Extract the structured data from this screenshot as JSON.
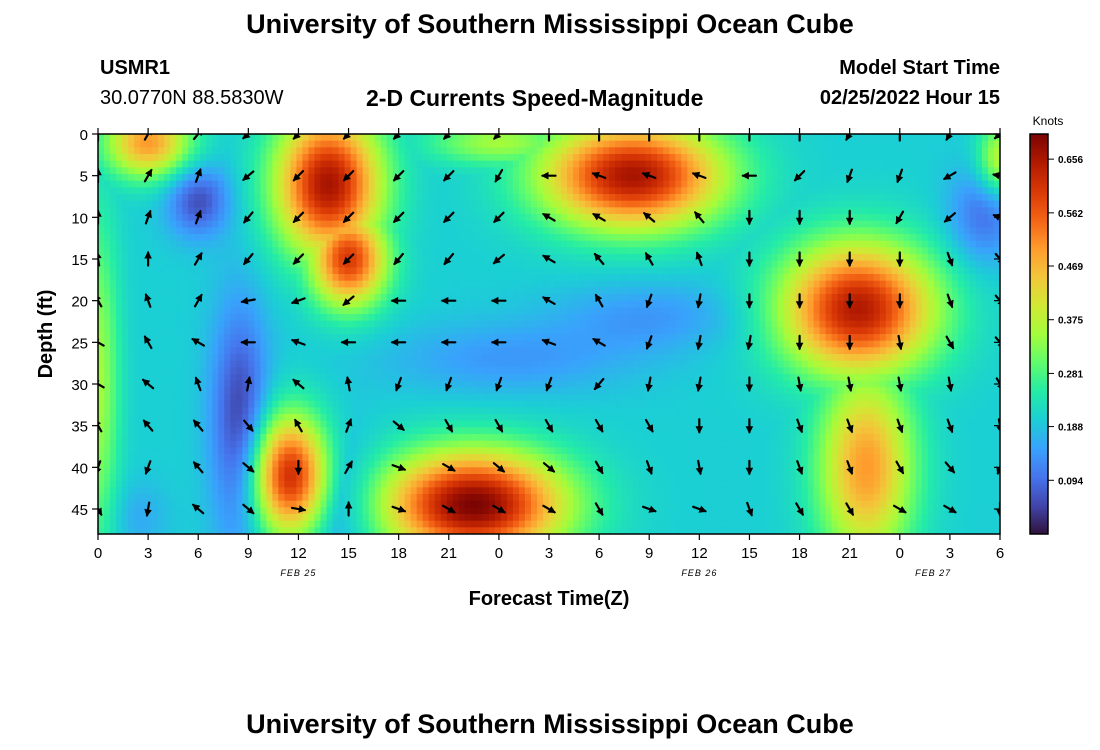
{
  "page": {
    "title": "University of Southern Mississippi Ocean Cube",
    "station": "USMR1",
    "coords": "30.0770N  88.5830W",
    "subtitle": "2-D Currents Speed-Magnitude",
    "model_label": "Model Start Time",
    "model_time": "02/25/2022 Hour 15",
    "footer_title": "University of Southern Mississippi Ocean Cube"
  },
  "chart_data": {
    "type": "heatmap",
    "ylabel": "Depth (ft)",
    "xlabel": "Forecast Time(Z)",
    "x_tick_labels": [
      "0",
      "3",
      "6",
      "9",
      "12",
      "15",
      "18",
      "21",
      "0",
      "3",
      "6",
      "9",
      "12",
      "15",
      "18",
      "21",
      "0",
      "3",
      "6"
    ],
    "x_range_hours": [
      0,
      54
    ],
    "y_ticks": [
      0,
      5,
      10,
      15,
      20,
      25,
      30,
      35,
      40,
      45
    ],
    "ylim": [
      0,
      48
    ],
    "y_inverted": true,
    "date_labels": [
      {
        "label": "FEB 25",
        "hour": 12
      },
      {
        "label": "FEB 26",
        "hour": 36
      },
      {
        "label": "FEB 27",
        "hour": 50
      }
    ],
    "colorbar": {
      "label": "Knots",
      "ticks": [
        0.094,
        0.188,
        0.281,
        0.375,
        0.469,
        0.562,
        0.656
      ],
      "range": [
        0,
        0.7
      ],
      "colors": [
        "#30123b",
        "#4145ab",
        "#4675ed",
        "#39a2fc",
        "#1bcfd4",
        "#24eca6",
        "#61fc6c",
        "#a4fc3b",
        "#d1e834",
        "#f3c63a",
        "#fe9b2d",
        "#f36315",
        "#d93806",
        "#b11901",
        "#7a0403"
      ]
    },
    "speed_hotspots": [
      {
        "t": 3,
        "d": 1,
        "v": 0.5,
        "st": 1.8,
        "sd": 3
      },
      {
        "t": 13.8,
        "d": 6,
        "v": 0.66,
        "st": 2.2,
        "sd": 6
      },
      {
        "t": 15,
        "d": 15,
        "v": 0.6,
        "st": 1.6,
        "sd": 4
      },
      {
        "t": 32,
        "d": 5,
        "v": 0.66,
        "st": 3.8,
        "sd": 4.5
      },
      {
        "t": 24,
        "d": 1,
        "v": 0.35,
        "st": 3,
        "sd": 2
      },
      {
        "t": 45.5,
        "d": 21,
        "v": 0.65,
        "st": 3.2,
        "sd": 5.5
      },
      {
        "t": 46,
        "d": 40,
        "v": 0.5,
        "st": 2,
        "sd": 8
      },
      {
        "t": 11.5,
        "d": 41,
        "v": 0.62,
        "st": 1.6,
        "sd": 5
      },
      {
        "t": 22.5,
        "d": 44.5,
        "v": 0.7,
        "st": 3.8,
        "sd": 4.5
      },
      {
        "t": 0,
        "d": 30,
        "v": 0.35,
        "st": 0.9,
        "sd": 14
      },
      {
        "t": 54,
        "d": 3,
        "v": 0.38,
        "st": 0.9,
        "sd": 3
      },
      {
        "t": 39.5,
        "d": 24,
        "v": 0.22,
        "st": 2.5,
        "sd": 3
      }
    ],
    "speed_lows": [
      {
        "t": 6,
        "d": 21,
        "v": 0.24,
        "st": 1.5,
        "sd": 6
      },
      {
        "t": 6,
        "d": 8,
        "v": 0.1,
        "st": 1.3,
        "sd": 3
      },
      {
        "t": 24.5,
        "d": 27,
        "v": 0.18,
        "st": 5,
        "sd": 3
      },
      {
        "t": 33,
        "d": 22,
        "v": 0.18,
        "st": 4,
        "sd": 3
      },
      {
        "t": 14.8,
        "d": 45,
        "v": 0.18,
        "st": 1.6,
        "sd": 6
      },
      {
        "t": 2.5,
        "d": 46,
        "v": 0.2,
        "st": 1.2,
        "sd": 3
      },
      {
        "t": 53,
        "d": 10,
        "v": 0.14,
        "st": 1.5,
        "sd": 4
      },
      {
        "t": 8.5,
        "d": 35,
        "v": 0.08,
        "st": 1.2,
        "sd": 10
      }
    ],
    "base_speed": 0.2,
    "vectors": {
      "times": [
        0,
        3,
        6,
        9,
        12,
        15,
        18,
        21,
        24,
        27,
        30,
        33,
        36,
        39,
        42,
        45,
        48,
        51,
        54
      ],
      "depths": [
        0,
        5,
        10,
        15,
        20,
        25,
        30,
        35,
        40,
        45
      ],
      "directions_deg": [
        [
          0,
          30,
          40,
          230,
          225,
          225,
          225,
          225,
          225,
          0,
          0,
          0,
          0,
          0,
          0,
          210,
          0,
          210,
          230
        ],
        [
          0,
          30,
          20,
          230,
          225,
          225,
          225,
          225,
          210,
          270,
          290,
          290,
          290,
          270,
          225,
          200,
          200,
          240,
          280
        ],
        [
          0,
          20,
          20,
          220,
          225,
          225,
          225,
          225,
          225,
          300,
          300,
          310,
          320,
          180,
          180,
          180,
          210,
          230,
          290
        ],
        [
          350,
          0,
          30,
          220,
          225,
          225,
          220,
          220,
          230,
          300,
          320,
          330,
          340,
          180,
          180,
          180,
          180,
          160,
          140
        ],
        [
          330,
          340,
          30,
          260,
          250,
          230,
          270,
          270,
          270,
          300,
          330,
          200,
          190,
          180,
          180,
          180,
          180,
          160,
          140
        ],
        [
          300,
          330,
          300,
          270,
          290,
          270,
          270,
          270,
          270,
          290,
          300,
          200,
          190,
          190,
          180,
          180,
          170,
          150,
          140
        ],
        [
          300,
          310,
          340,
          10,
          310,
          350,
          200,
          200,
          200,
          200,
          220,
          190,
          190,
          180,
          170,
          170,
          170,
          170,
          150
        ],
        [
          330,
          320,
          320,
          140,
          330,
          20,
          130,
          150,
          150,
          150,
          150,
          150,
          180,
          180,
          160,
          160,
          160,
          160,
          170
        ],
        [
          200,
          200,
          320,
          130,
          180,
          30,
          110,
          120,
          130,
          130,
          150,
          160,
          170,
          180,
          160,
          160,
          150,
          140,
          200
        ],
        [
          150,
          190,
          310,
          130,
          100,
          0,
          110,
          120,
          120,
          120,
          150,
          110,
          110,
          160,
          150,
          150,
          120,
          120,
          180
        ]
      ]
    }
  }
}
